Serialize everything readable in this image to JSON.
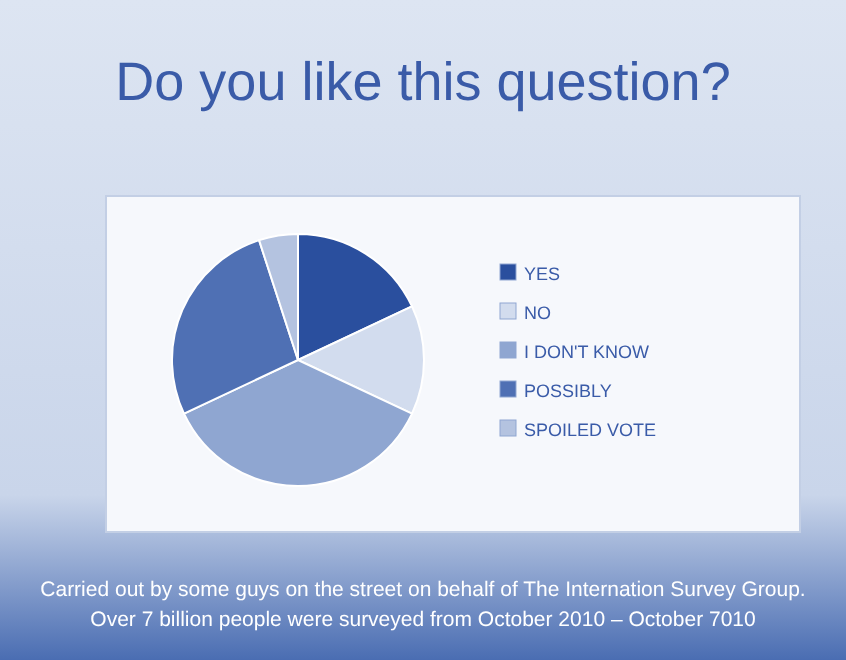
{
  "chart_data": {
    "type": "pie",
    "title": "Do you like this question?",
    "categories": [
      "YES",
      "NO",
      "I DON'T KNOW",
      "POSSIBLY",
      "SPOILED VOTE"
    ],
    "values": [
      18,
      14,
      36,
      27,
      5
    ],
    "colors": [
      "#2a4f9e",
      "#d2dcee",
      "#8fa6d1",
      "#4f70b4",
      "#b4c3e0"
    ],
    "legend": "right",
    "annotations": [
      "Carried out by some guys on the street on behalf of The Internation Survey Group.",
      "Over 7 billion people were surveyed from October 2010 – October 7010"
    ]
  }
}
